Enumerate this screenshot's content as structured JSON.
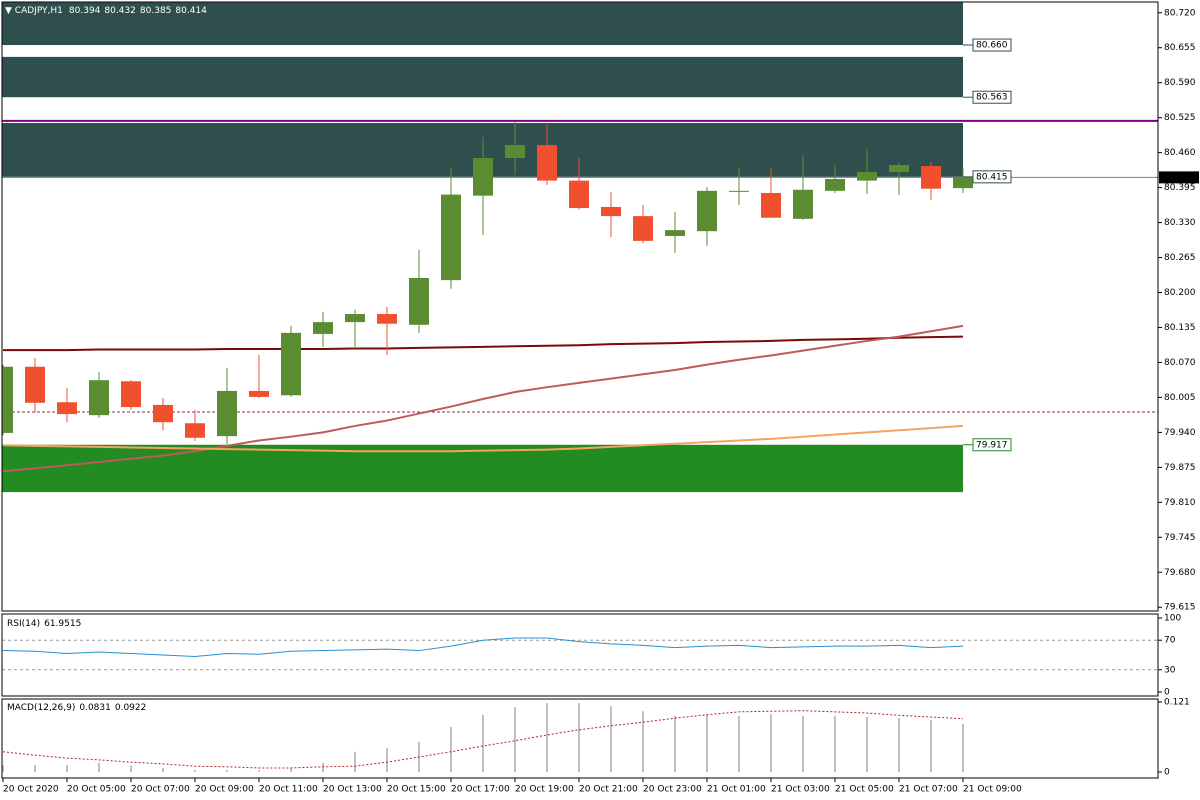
{
  "chart_data": [
    {
      "type": "candlestick",
      "title": "CADJPY,H1",
      "categories": [
        "20 Oct 2020",
        null,
        "20 Oct 05:00",
        null,
        "20 Oct 07:00",
        null,
        "20 Oct 09:00",
        null,
        "20 Oct 11:00",
        null,
        "20 Oct 13:00",
        null,
        "20 Oct 15:00",
        null,
        "20 Oct 17:00",
        null,
        "20 Oct 19:00",
        null,
        "20 Oct 21:00",
        null,
        "20 Oct 23:00",
        null,
        "21 Oct 01:00",
        null,
        "21 Oct 03:00",
        null,
        "21 Oct 05:00",
        null,
        "21 Oct 07:00",
        null,
        "21 Oct 09:00"
      ],
      "open": [
        79.939,
        80.062,
        79.996,
        79.972,
        80.035,
        79.991,
        79.957,
        79.933,
        80.017,
        80.009,
        80.123,
        80.145,
        80.16,
        80.14,
        80.223,
        80.38,
        80.45,
        80.474,
        80.408,
        80.359,
        80.342,
        80.305,
        80.314,
        80.389,
        80.385,
        80.337,
        80.389,
        80.408,
        80.424,
        80.435,
        80.394
      ],
      "high": [
        80.066,
        80.078,
        80.022,
        80.052,
        80.037,
        80.004,
        79.982,
        80.06,
        80.084,
        80.138,
        80.164,
        80.168,
        80.173,
        80.279,
        80.432,
        80.489,
        80.517,
        80.512,
        80.45,
        80.387,
        80.363,
        80.35,
        80.396,
        80.432,
        80.432,
        80.456,
        80.437,
        80.467,
        80.441,
        80.443,
        80.432
      ],
      "low": [
        79.935,
        79.978,
        79.959,
        79.967,
        79.982,
        79.944,
        79.924,
        79.918,
        80.004,
        80.006,
        80.099,
        80.099,
        80.084,
        80.125,
        80.207,
        80.307,
        80.419,
        80.4,
        80.354,
        80.303,
        80.292,
        80.274,
        80.287,
        80.363,
        80.339,
        80.335,
        80.385,
        80.383,
        80.381,
        80.372,
        80.385
      ],
      "close": [
        80.062,
        79.995,
        79.974,
        80.037,
        79.987,
        79.959,
        79.93,
        80.017,
        80.006,
        80.125,
        80.145,
        80.16,
        80.142,
        80.227,
        80.382,
        80.45,
        80.474,
        80.408,
        80.357,
        80.342,
        80.296,
        80.316,
        80.389,
        80.389,
        80.339,
        80.391,
        80.411,
        80.424,
        80.437,
        80.393,
        80.414
      ],
      "up_color": "#5b8c31",
      "down_color": "#f0502d",
      "bid_line_color": "#708090",
      "ylim": [
        79.608,
        80.74
      ],
      "yticks": [
        {
          "value": 80.72,
          "label": "80.720"
        },
        80.655,
        {
          "value": 80.59,
          "label": "80.590"
        },
        80.525,
        {
          "value": 80.46,
          "label": "80.460"
        },
        80.395,
        {
          "value": 80.33,
          "label": "80.330"
        },
        80.265,
        {
          "value": 80.2,
          "label": "80.200"
        },
        80.135,
        {
          "value": 80.07,
          "label": "80.070"
        },
        80.005,
        {
          "value": 79.94,
          "label": "79.940"
        },
        79.875,
        {
          "value": 79.81,
          "label": "79.810"
        },
        79.745,
        {
          "value": 79.68,
          "label": "79.680"
        },
        79.615
      ],
      "zones": [
        {
          "high": 80.739,
          "low": 80.66,
          "color": "#2f4f4f",
          "label": "80.660",
          "label_edge": "low"
        },
        {
          "high": 80.638,
          "low": 80.563,
          "color": "#2f4f4f",
          "label": "80.563",
          "label_edge": "low"
        },
        {
          "high": 80.515,
          "low": 80.415,
          "color": "#2f4f4f",
          "label": "80.415",
          "label_edge": "low"
        },
        {
          "high": 79.917,
          "low": 79.829,
          "color": "#228b22",
          "label": "79.917",
          "label_edge": "high"
        }
      ],
      "levels": [
        {
          "value": 80.519,
          "color": "#800080",
          "dash": false
        },
        {
          "value": 79.978,
          "color": "#8b2f4a",
          "dash": true
        }
      ],
      "overlays": [
        {
          "color": "#7a0a0a",
          "values": [
            80.093,
            80.093,
            80.093,
            80.094,
            80.094,
            80.094,
            80.094,
            80.095,
            80.095,
            80.095,
            80.095,
            80.096,
            80.096,
            80.097,
            80.098,
            80.099,
            80.1,
            80.101,
            80.102,
            80.104,
            80.105,
            80.106,
            80.108,
            80.109,
            80.11,
            80.112,
            80.113,
            80.114,
            80.116,
            80.117,
            80.118
          ]
        },
        {
          "color": "#c05a5a",
          "values": [
            79.868,
            79.873,
            79.879,
            79.885,
            79.891,
            79.897,
            79.905,
            79.915,
            79.925,
            79.932,
            79.94,
            79.952,
            79.962,
            79.975,
            79.988,
            80.002,
            80.015,
            80.024,
            80.032,
            80.04,
            80.048,
            80.056,
            80.066,
            80.075,
            80.083,
            80.092,
            80.101,
            80.11,
            80.118,
            80.128,
            80.138
          ]
        },
        {
          "color": "#f4a460",
          "values": [
            79.916,
            79.915,
            79.914,
            79.913,
            79.912,
            79.911,
            79.91,
            79.909,
            79.908,
            79.907,
            79.906,
            79.905,
            79.905,
            79.905,
            79.905,
            79.906,
            79.907,
            79.908,
            79.91,
            79.913,
            79.916,
            79.919,
            79.922,
            79.925,
            79.928,
            79.932,
            79.936,
            79.94,
            79.944,
            79.948,
            79.952
          ]
        }
      ]
    },
    {
      "type": "line",
      "title": "RSI(14)",
      "color": "#2a8fd0",
      "values": [
        56,
        55,
        52,
        54,
        52,
        50,
        48,
        52,
        51,
        55,
        56,
        57,
        58,
        56,
        62,
        70,
        73,
        73,
        68,
        65,
        63,
        60,
        62,
        63,
        60,
        61,
        62,
        62,
        63,
        60,
        61.9515
      ],
      "ylim": [
        0,
        100
      ],
      "yticks": [
        0,
        30,
        70,
        100
      ],
      "level_lines": true
    },
    {
      "type": "macd",
      "title": "MACD(12,26,9)",
      "color": "#c0c0c0",
      "values": [
        0.012,
        0.012,
        0.012,
        0.016,
        0.011,
        0.007,
        0.003,
        0.003,
        0.003,
        0.007,
        0.016,
        0.035,
        0.041,
        0.052,
        0.078,
        0.099,
        0.112,
        0.119,
        0.119,
        0.114,
        0.105,
        0.097,
        0.1,
        0.097,
        0.1,
        0.097,
        0.097,
        0.095,
        0.093,
        0.09,
        0.0831
      ],
      "signal": {
        "color": "#b22222",
        "values": [
          0.035,
          0.029,
          0.024,
          0.021,
          0.017,
          0.014,
          0.01,
          0.009,
          0.007,
          0.007,
          0.009,
          0.01,
          0.017,
          0.026,
          0.035,
          0.045,
          0.054,
          0.064,
          0.073,
          0.08,
          0.086,
          0.093,
          0.099,
          0.104,
          0.105,
          0.106,
          0.104,
          0.102,
          0.098,
          0.095,
          0.0922
        ]
      },
      "ylim": [
        0,
        0.121
      ],
      "yticks": [
        0,
        0.121
      ]
    }
  ]
}
